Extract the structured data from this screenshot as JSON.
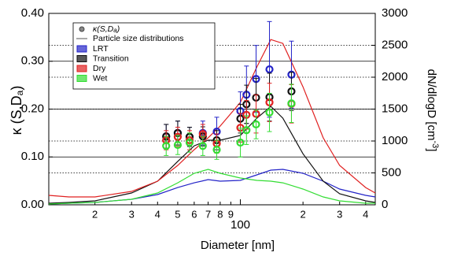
{
  "chart_data": {
    "type": "scatter",
    "xlabel": "Diameter [nm]",
    "ylabel_parts": [
      "κ (S,D",
      "a",
      ")"
    ],
    "y2label_parts": [
      "dN/dlogD [cm",
      "-3",
      "]"
    ],
    "xscale": "log",
    "xlim": [
      12,
      445
    ],
    "xticks": [
      {
        "value": 20,
        "label": "2"
      },
      {
        "value": 30,
        "label": "3"
      },
      {
        "value": 40,
        "label": "4"
      },
      {
        "value": 50,
        "label": "5"
      },
      {
        "value": 60,
        "label": "6"
      },
      {
        "value": 70,
        "label": "7"
      },
      {
        "value": 80,
        "label": "8"
      },
      {
        "value": 90,
        "label": "9"
      },
      100,
      {
        "value": 200,
        "label": "2"
      },
      {
        "value": 300,
        "label": "3"
      },
      {
        "value": 400,
        "label": "4"
      }
    ],
    "ylim": [
      0,
      0.4
    ],
    "yticks": [
      {
        "value": 0,
        "label": "0.00"
      },
      {
        "value": 0.1,
        "label": "0.10"
      },
      {
        "value": 0.2,
        "label": "0.20"
      },
      {
        "value": 0.3,
        "label": "0.30"
      },
      {
        "value": 0.4,
        "label": "0.40"
      }
    ],
    "y2lim": [
      0,
      3000
    ],
    "y2ticks": [
      0,
      500,
      1000,
      1500,
      2000,
      2500,
      3000
    ],
    "grid": true,
    "legend": {
      "marker_label_parts": [
        "κ(S,D",
        "a",
        ")"
      ],
      "line_label": "Particle size distributions"
    },
    "x": [
      44,
      50,
      57,
      66,
      77,
      100,
      107,
      119,
      138,
      176
    ],
    "series": [
      {
        "name": "LRT",
        "color": "#2323c8",
        "values": [
          0.143,
          0.15,
          0.142,
          0.15,
          0.153,
          0.196,
          0.23,
          0.263,
          0.283,
          0.272
        ],
        "errors": [
          0.025,
          0.025,
          0.02,
          0.025,
          0.03,
          0.04,
          0.06,
          0.07,
          0.1,
          0.07
        ]
      },
      {
        "name": "Transition",
        "color": "#111111",
        "values": [
          0.143,
          0.15,
          0.142,
          0.143,
          0.135,
          0.18,
          0.21,
          0.224,
          0.225,
          0.237
        ],
        "errors": [
          0.025,
          0.025,
          0.02,
          0.02,
          0.02,
          0.03,
          0.04,
          0.04,
          0.05,
          0.04
        ]
      },
      {
        "name": "Dry",
        "color": "#e02020",
        "values": [
          0.135,
          0.142,
          0.135,
          0.148,
          0.128,
          0.161,
          0.188,
          0.19,
          0.214,
          0.211
        ],
        "errors": [
          0.02,
          0.02,
          0.02,
          0.02,
          0.02,
          0.03,
          0.03,
          0.04,
          0.04,
          0.04
        ]
      },
      {
        "name": "Wet",
        "color": "#33dd33",
        "values": [
          0.123,
          0.125,
          0.13,
          0.123,
          0.115,
          0.13,
          0.156,
          0.168,
          0.193,
          0.212
        ],
        "errors": [
          0.02,
          0.02,
          0.02,
          0.02,
          0.02,
          0.03,
          0.03,
          0.03,
          0.04,
          0.04
        ]
      }
    ],
    "psd": {
      "x": [
        12,
        15,
        20,
        30,
        40,
        50,
        60,
        70,
        80,
        100,
        120,
        140,
        160,
        200,
        250,
        300,
        400,
        445
      ],
      "series": [
        {
          "color": "#2323c8",
          "axis": "y2",
          "values": [
            12,
            25,
            37,
            86,
            160,
            270,
            345,
            395,
            370,
            383,
            469,
            543,
            555,
            494,
            370,
            247,
            148,
            123
          ]
        },
        {
          "color": "#111111",
          "axis": "y2",
          "values": [
            25,
            37,
            62,
            185,
            370,
            680,
            925,
            1012,
            1012,
            1086,
            1358,
            1543,
            1358,
            800,
            370,
            173,
            62,
            37
          ]
        },
        {
          "color": "#e02020",
          "axis": "y2",
          "values": [
            148,
            123,
            123,
            210,
            370,
            617,
            864,
            1050,
            1235,
            1605,
            2160,
            2590,
            2530,
            1850,
            1050,
            617,
            270,
            185
          ]
        },
        {
          "color": "#33dd33",
          "axis": "y2",
          "values": [
            12,
            25,
            37,
            86,
            185,
            345,
            494,
            555,
            494,
            420,
            383,
            370,
            345,
            247,
            123,
            62,
            25,
            25
          ]
        }
      ]
    }
  }
}
